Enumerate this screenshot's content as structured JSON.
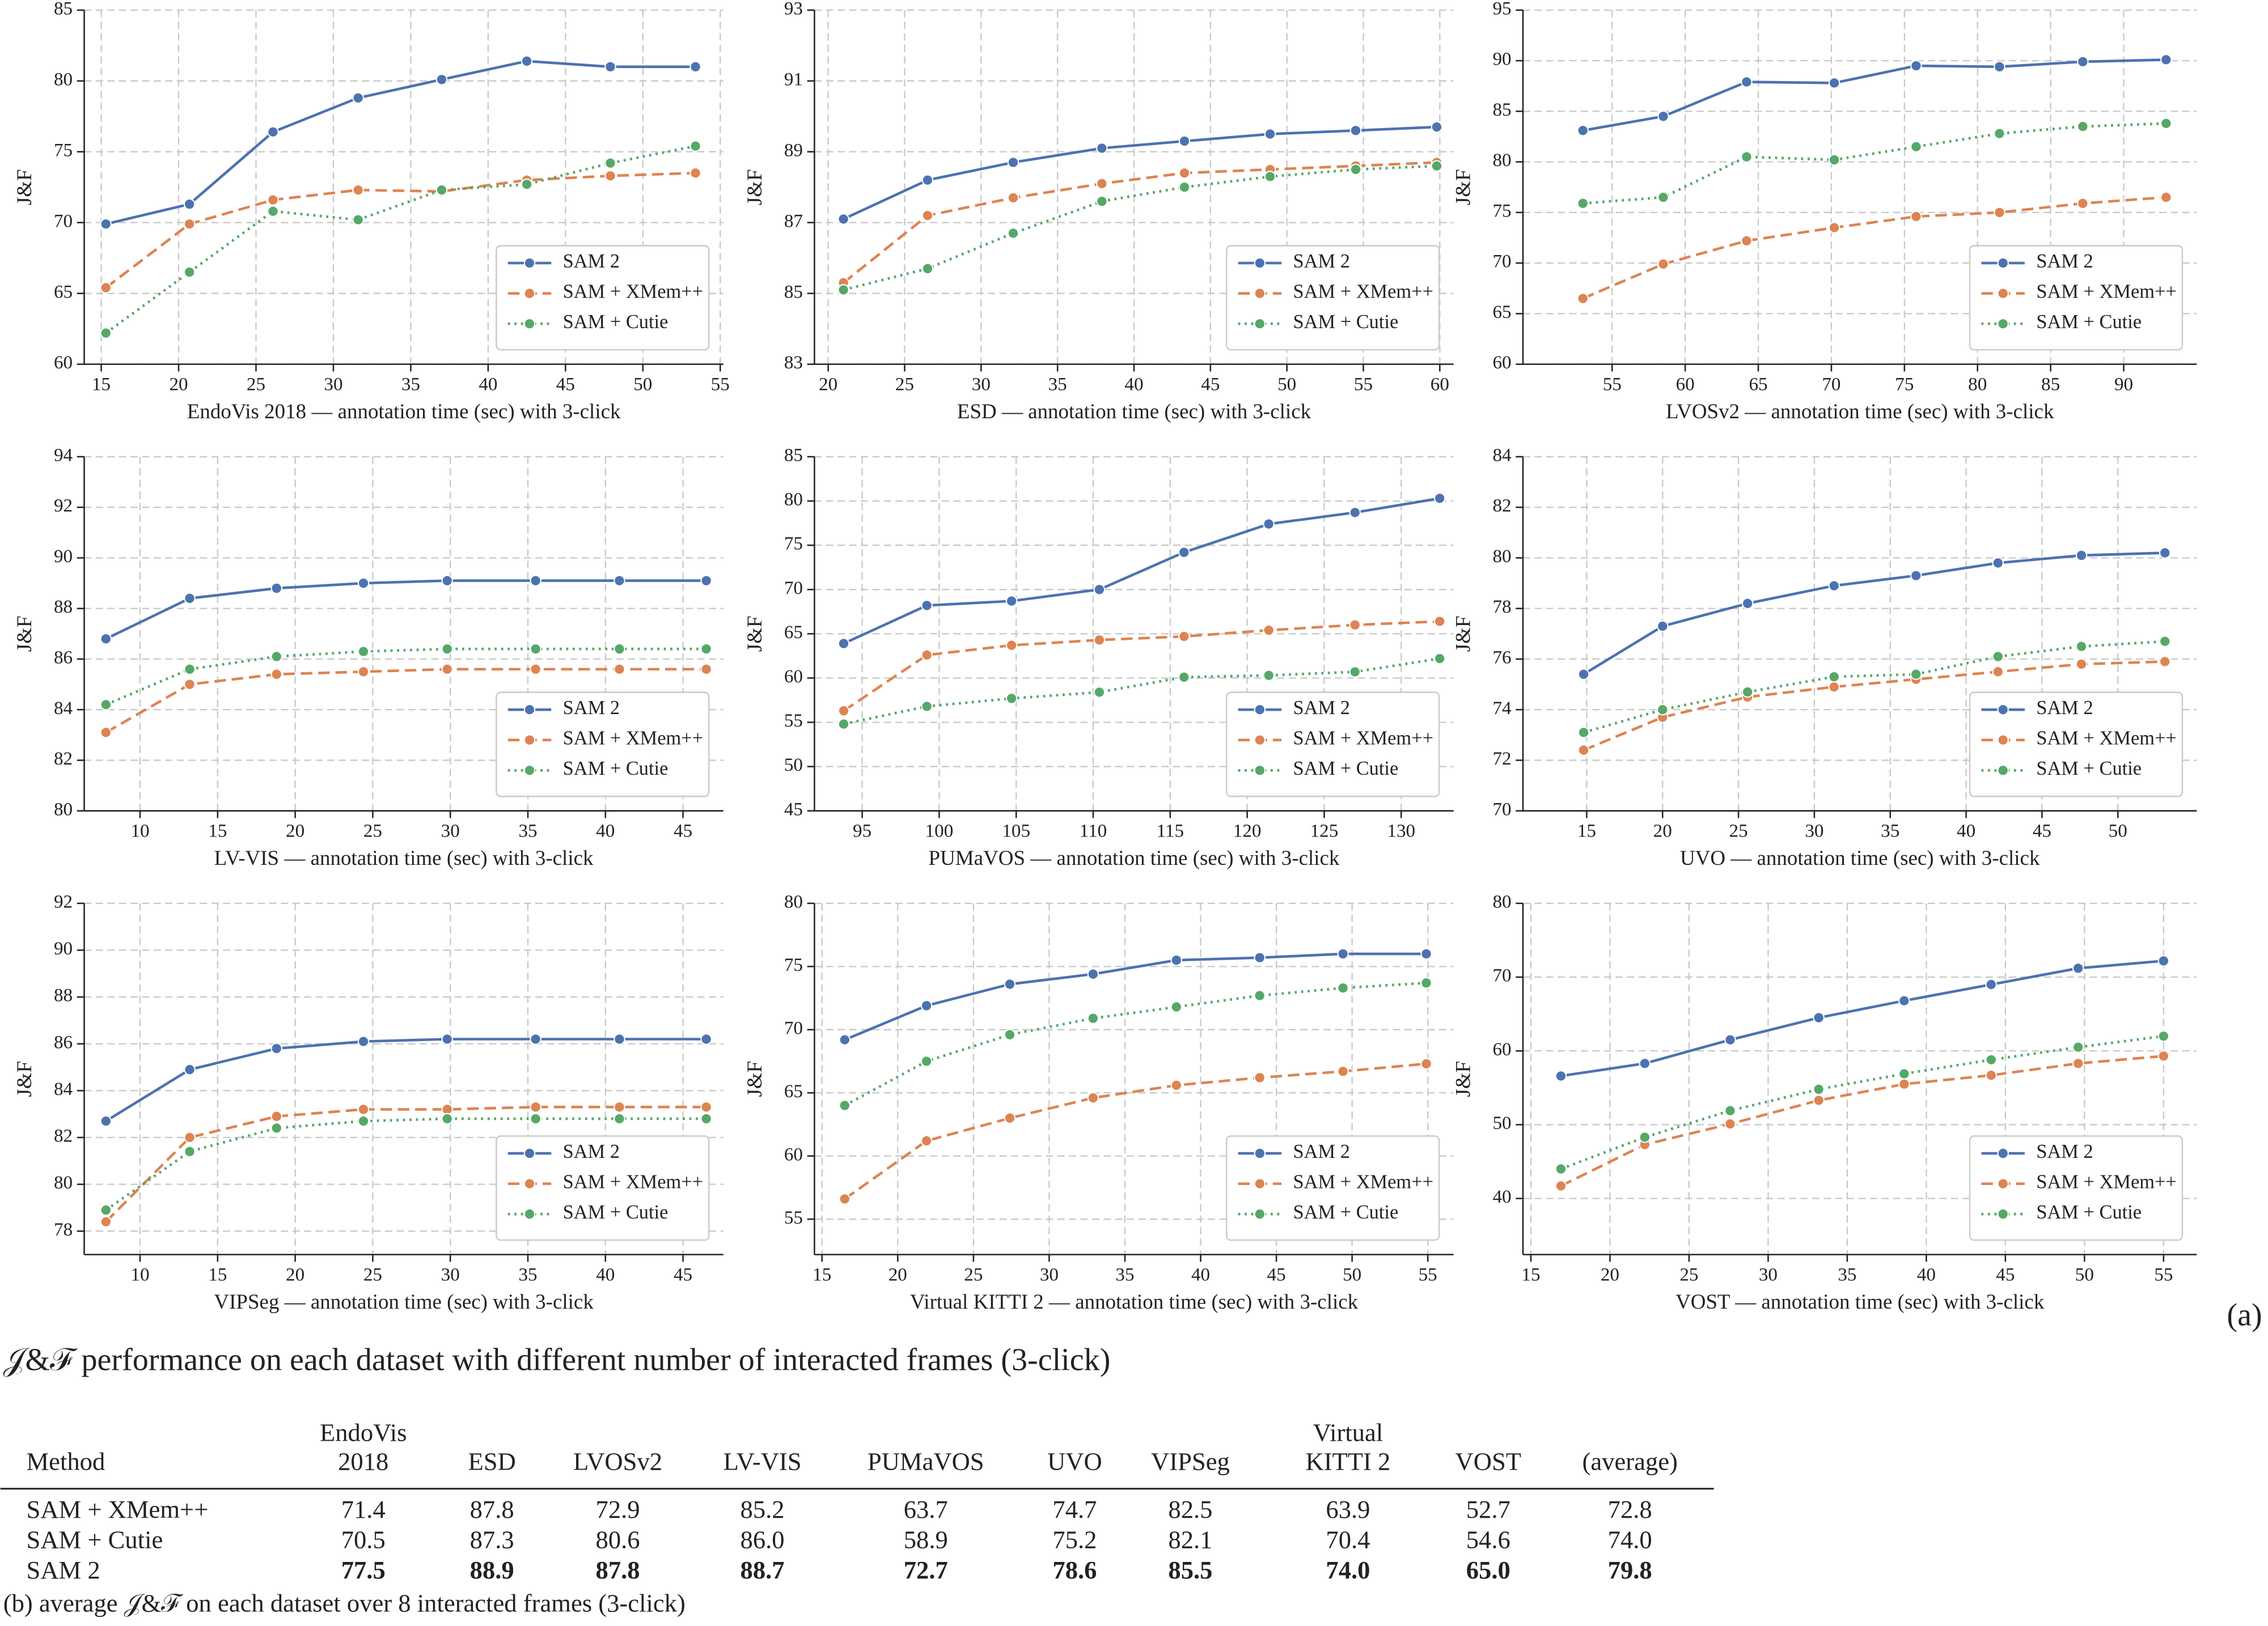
{
  "chart_data": [
    {
      "type": "line",
      "x_label": "EndoVis 2018 — annotation time (sec) with 3-click",
      "y_label": "J&F",
      "x": [
        15.3,
        20.7,
        26.1,
        31.6,
        37.0,
        42.5,
        47.9,
        53.4
      ],
      "xlim": [
        13.9,
        55.2
      ],
      "xticks": [
        15,
        20,
        25,
        30,
        35,
        40,
        45,
        50,
        55
      ],
      "ylim": [
        60,
        85
      ],
      "yticks": [
        60,
        65,
        70,
        75,
        80,
        85
      ],
      "grid": true,
      "legend": "lower right",
      "series": [
        {
          "name": "SAM 2",
          "color": "#4c72b0",
          "values": [
            69.9,
            71.3,
            76.4,
            78.8,
            80.1,
            81.4,
            81.0,
            81.0
          ]
        },
        {
          "name": "SAM + XMem++",
          "color": "#dd8452",
          "values": [
            65.4,
            69.9,
            71.6,
            72.3,
            72.2,
            73.0,
            73.3,
            73.5
          ]
        },
        {
          "name": "SAM + Cutie",
          "color": "#55a868",
          "values": [
            62.2,
            66.5,
            70.8,
            70.2,
            72.3,
            72.7,
            74.2,
            75.4
          ]
        }
      ]
    },
    {
      "type": "line",
      "x_label": "ESD — annotation time (sec) with 3-click",
      "y_label": "J&F",
      "x": [
        21.0,
        26.5,
        32.1,
        37.9,
        43.3,
        48.9,
        54.5,
        59.8
      ],
      "xlim": [
        19.1,
        60.9
      ],
      "xticks": [
        20,
        25,
        30,
        35,
        40,
        45,
        50,
        55,
        60
      ],
      "ylim": [
        83,
        93
      ],
      "yticks": [
        83,
        85,
        87,
        89,
        91,
        93
      ],
      "grid": true,
      "legend": "lower right",
      "series": [
        {
          "name": "SAM 2",
          "color": "#4c72b0",
          "values": [
            87.1,
            88.2,
            88.7,
            89.1,
            89.3,
            89.5,
            89.6,
            89.7
          ]
        },
        {
          "name": "SAM + XMem++",
          "color": "#dd8452",
          "values": [
            85.3,
            87.2,
            87.7,
            88.1,
            88.4,
            88.5,
            88.6,
            88.7
          ]
        },
        {
          "name": "SAM + Cutie",
          "color": "#55a868",
          "values": [
            85.1,
            85.7,
            86.7,
            87.6,
            88.0,
            88.3,
            88.5,
            88.6
          ]
        }
      ]
    },
    {
      "type": "line",
      "x_label": "LVOSv2 — annotation time (sec) with 3-click",
      "y_label": "J&F",
      "x": [
        53.0,
        58.5,
        64.2,
        70.2,
        75.8,
        81.5,
        87.2,
        92.9
      ],
      "xlim": [
        48.9,
        95.0
      ],
      "xticks": [
        55,
        60,
        65,
        70,
        75,
        80,
        85,
        90
      ],
      "ylim": [
        60,
        95
      ],
      "yticks": [
        60,
        65,
        70,
        75,
        80,
        85,
        90,
        95
      ],
      "grid": true,
      "legend": "lower right",
      "series": [
        {
          "name": "SAM 2",
          "color": "#4c72b0",
          "values": [
            83.1,
            84.5,
            87.9,
            87.8,
            89.5,
            89.4,
            89.9,
            90.1
          ]
        },
        {
          "name": "SAM + XMem++",
          "color": "#dd8452",
          "values": [
            66.5,
            69.9,
            72.2,
            73.5,
            74.6,
            75.0,
            75.9,
            76.5
          ]
        },
        {
          "name": "SAM + Cutie",
          "color": "#55a868",
          "values": [
            75.9,
            76.5,
            80.5,
            80.2,
            81.5,
            82.8,
            83.5,
            83.8
          ]
        }
      ]
    },
    {
      "type": "line",
      "x_label": "LV-VIS — annotation time (sec) with 3-click",
      "y_label": "J&F",
      "x": [
        7.8,
        13.2,
        18.8,
        24.4,
        29.8,
        35.5,
        40.9,
        46.5
      ],
      "xlim": [
        6.4,
        47.6
      ],
      "xticks": [
        10,
        15,
        20,
        25,
        30,
        35,
        40,
        45
      ],
      "ylim": [
        80,
        94
      ],
      "yticks": [
        80,
        82,
        84,
        86,
        88,
        90,
        92,
        94
      ],
      "grid": true,
      "legend": "lower right",
      "series": [
        {
          "name": "SAM 2",
          "color": "#4c72b0",
          "values": [
            86.8,
            88.4,
            88.8,
            89.0,
            89.1,
            89.1,
            89.1,
            89.1
          ]
        },
        {
          "name": "SAM + XMem++",
          "color": "#dd8452",
          "values": [
            83.1,
            85.0,
            85.4,
            85.5,
            85.6,
            85.6,
            85.6,
            85.6
          ]
        },
        {
          "name": "SAM + Cutie",
          "color": "#55a868",
          "values": [
            84.2,
            85.6,
            86.1,
            86.3,
            86.4,
            86.4,
            86.4,
            86.4
          ]
        }
      ]
    },
    {
      "type": "line",
      "x_label": "PUMaVOS — annotation time (sec) with 3-click",
      "y_label": "J&F",
      "x": [
        93.8,
        99.2,
        104.7,
        110.4,
        115.9,
        121.4,
        127.0,
        132.5
      ],
      "xlim": [
        91.9,
        133.4
      ],
      "xticks": [
        95,
        100,
        105,
        110,
        115,
        120,
        125,
        130
      ],
      "ylim": [
        45,
        85
      ],
      "yticks": [
        45,
        50,
        55,
        60,
        65,
        70,
        75,
        80,
        85
      ],
      "grid": true,
      "legend": "lower right",
      "series": [
        {
          "name": "SAM 2",
          "color": "#4c72b0",
          "values": [
            63.9,
            68.2,
            68.7,
            70.0,
            74.2,
            77.4,
            78.7,
            80.3
          ]
        },
        {
          "name": "SAM + XMem++",
          "color": "#dd8452",
          "values": [
            56.3,
            62.6,
            63.7,
            64.3,
            64.7,
            65.4,
            66.0,
            66.4
          ]
        },
        {
          "name": "SAM + Cutie",
          "color": "#55a868",
          "values": [
            54.8,
            56.8,
            57.7,
            58.4,
            60.1,
            60.3,
            60.7,
            62.2
          ]
        }
      ]
    },
    {
      "type": "line",
      "x_label": "UVO — annotation time (sec) with 3-click",
      "y_label": "J&F",
      "x": [
        14.8,
        20.0,
        25.6,
        31.3,
        36.7,
        42.1,
        47.6,
        53.1
      ],
      "xlim": [
        10.8,
        55.2
      ],
      "xticks": [
        15,
        20,
        25,
        30,
        35,
        40,
        45,
        50
      ],
      "ylim": [
        70,
        84
      ],
      "yticks": [
        70,
        72,
        74,
        76,
        78,
        80,
        82,
        84
      ],
      "grid": true,
      "legend": "lower right",
      "series": [
        {
          "name": "SAM 2",
          "color": "#4c72b0",
          "values": [
            75.4,
            77.3,
            78.2,
            78.9,
            79.3,
            79.8,
            80.1,
            80.2
          ]
        },
        {
          "name": "SAM + XMem++",
          "color": "#dd8452",
          "values": [
            72.4,
            73.7,
            74.5,
            74.9,
            75.2,
            75.5,
            75.8,
            75.9
          ]
        },
        {
          "name": "SAM + Cutie",
          "color": "#55a868",
          "values": [
            73.1,
            74.0,
            74.7,
            75.3,
            75.4,
            76.1,
            76.5,
            76.7
          ]
        }
      ]
    },
    {
      "type": "line",
      "x_label": "VIPSeg — annotation time (sec) with 3-click",
      "y_label": "J&F",
      "x": [
        7.8,
        13.2,
        18.8,
        24.4,
        29.8,
        35.5,
        40.9,
        46.5
      ],
      "xlim": [
        6.4,
        47.6
      ],
      "xticks": [
        10,
        15,
        20,
        25,
        30,
        35,
        40,
        45
      ],
      "ylim": [
        77,
        92
      ],
      "yticks": [
        78,
        80,
        82,
        84,
        86,
        88,
        90,
        92
      ],
      "grid": true,
      "legend": "lower right",
      "series": [
        {
          "name": "SAM 2",
          "color": "#4c72b0",
          "values": [
            82.7,
            84.9,
            85.8,
            86.1,
            86.2,
            86.2,
            86.2,
            86.2
          ]
        },
        {
          "name": "SAM + XMem++",
          "color": "#dd8452",
          "values": [
            78.4,
            82.0,
            82.9,
            83.2,
            83.2,
            83.3,
            83.3,
            83.3
          ]
        },
        {
          "name": "SAM + Cutie",
          "color": "#55a868",
          "values": [
            78.9,
            81.4,
            82.4,
            82.7,
            82.8,
            82.8,
            82.8,
            82.8
          ]
        }
      ]
    },
    {
      "type": "line",
      "x_label": "Virtual KITTI 2 — annotation time (sec) with 3-click",
      "y_label": "J&F",
      "x": [
        16.5,
        21.9,
        27.4,
        32.9,
        38.4,
        43.9,
        49.4,
        54.9
      ],
      "xlim": [
        14.5,
        56.7
      ],
      "xticks": [
        15,
        20,
        25,
        30,
        35,
        40,
        45,
        50,
        55
      ],
      "ylim": [
        52.2,
        80
      ],
      "yticks": [
        55,
        60,
        65,
        70,
        75,
        80
      ],
      "grid": true,
      "legend": "lower right",
      "series": [
        {
          "name": "SAM 2",
          "color": "#4c72b0",
          "values": [
            69.2,
            71.9,
            73.6,
            74.4,
            75.5,
            75.7,
            76.0,
            76.0
          ]
        },
        {
          "name": "SAM + XMem++",
          "color": "#dd8452",
          "values": [
            56.6,
            61.2,
            63.0,
            64.6,
            65.6,
            66.2,
            66.7,
            67.3
          ]
        },
        {
          "name": "SAM + Cutie",
          "color": "#55a868",
          "values": [
            64.0,
            67.5,
            69.6,
            70.9,
            71.8,
            72.7,
            73.3,
            73.7
          ]
        }
      ]
    },
    {
      "type": "line",
      "x_label": "VOST — annotation time (sec) with 3-click",
      "y_label": "J&F",
      "x": [
        16.9,
        22.2,
        27.6,
        33.2,
        38.6,
        44.1,
        49.6,
        55.0
      ],
      "xlim": [
        14.5,
        57.1
      ],
      "xticks": [
        15,
        20,
        25,
        30,
        35,
        40,
        45,
        50,
        55
      ],
      "ylim": [
        32.4,
        80
      ],
      "yticks": [
        40,
        50,
        60,
        70,
        80
      ],
      "grid": true,
      "legend": "lower right",
      "series": [
        {
          "name": "SAM 2",
          "color": "#4c72b0",
          "values": [
            56.6,
            58.3,
            61.5,
            64.5,
            66.8,
            69.0,
            71.2,
            72.2
          ]
        },
        {
          "name": "SAM + XMem++",
          "color": "#dd8452",
          "values": [
            41.7,
            47.3,
            50.1,
            53.3,
            55.5,
            56.7,
            58.3,
            59.3
          ]
        },
        {
          "name": "SAM + Cutie",
          "color": "#55a868",
          "values": [
            44.0,
            48.3,
            51.9,
            54.8,
            56.9,
            58.8,
            60.5,
            62.0
          ]
        }
      ]
    }
  ],
  "panel_tag": "(a)",
  "figure_caption": "𝒥&ℱ performance on each dataset with different number of interacted frames (3-click)",
  "table": {
    "header": [
      [
        "Method"
      ],
      [
        "EndoVis",
        "2018"
      ],
      [
        "ESD"
      ],
      [
        "LVOSv2"
      ],
      [
        "LV-VIS"
      ],
      [
        "PUMaVOS"
      ],
      [
        "UVO"
      ],
      [
        "VIPSeg"
      ],
      [
        "Virtual",
        "KITTI 2"
      ],
      [
        "VOST"
      ],
      [
        "(average)"
      ]
    ],
    "rows": [
      [
        "SAM + XMem++",
        "71.4",
        "87.8",
        "72.9",
        "85.2",
        "63.7",
        "74.7",
        "82.5",
        "63.9",
        "52.7",
        "72.8"
      ],
      [
        "SAM + Cutie",
        "70.5",
        "87.3",
        "80.6",
        "86.0",
        "58.9",
        "75.2",
        "82.1",
        "70.4",
        "54.6",
        "74.0"
      ],
      [
        "SAM 2",
        "77.5",
        "88.9",
        "87.8",
        "88.7",
        "72.7",
        "78.6",
        "85.5",
        "74.0",
        "65.0",
        "79.8"
      ]
    ],
    "caption": "(b) average 𝒥&ℱ on each dataset over 8 interacted frames (3-click)"
  }
}
